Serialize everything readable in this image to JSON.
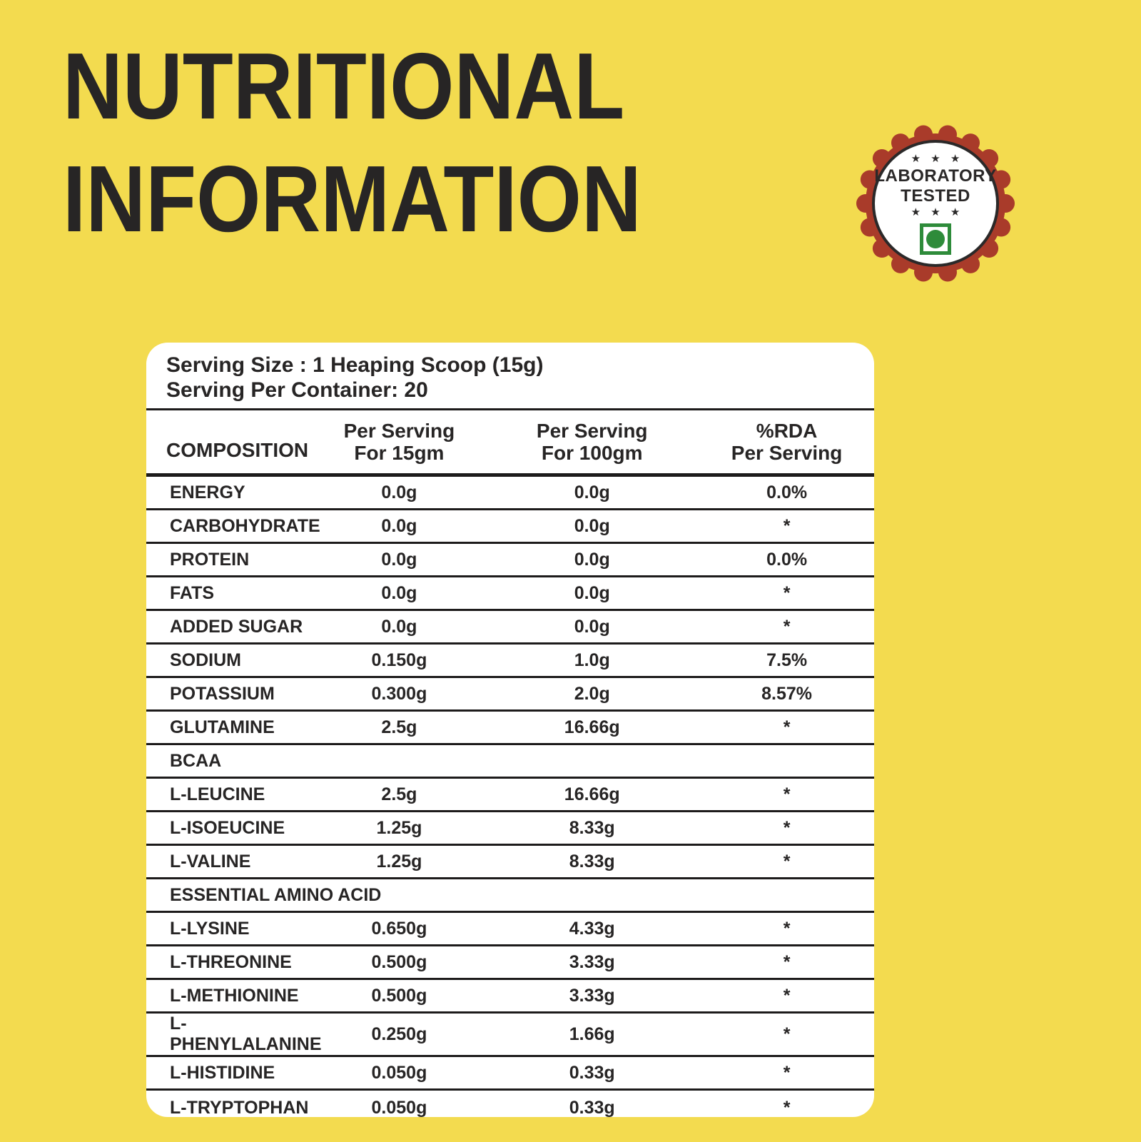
{
  "colors": {
    "background": "#F3DB4F",
    "ink": "#272525",
    "badge_red": "#A93B2A",
    "badge_ring": "#2B2929",
    "veg_green": "#2E8B3A",
    "panel": "#FFFFFF",
    "rule": "#1D1B1B"
  },
  "title": {
    "line1": "NUTRITIONAL",
    "line2": "INFORMATION"
  },
  "badge": {
    "stars_top": "★ ★ ★",
    "name_line1": "LABORATORY",
    "name_line2": "TESTED",
    "stars_bottom": "★ ★ ★"
  },
  "serving": {
    "size_label": "Serving Size : 1 Heaping Scoop (15g)",
    "per_container_label": "Serving Per Container: 20"
  },
  "table": {
    "columns": [
      {
        "label": "COMPOSITION"
      },
      {
        "line1": "Per Serving",
        "line2": "For 15gm"
      },
      {
        "line1": "Per Serving",
        "line2": "For 100gm"
      },
      {
        "line1": "%RDA",
        "line2": "Per Serving"
      }
    ],
    "rows": [
      {
        "name": "ENERGY",
        "per_15g": "0.0g",
        "per_100g": "0.0g",
        "rda": "0.0%"
      },
      {
        "name": "CARBOHYDRATE",
        "per_15g": "0.0g",
        "per_100g": "0.0g",
        "rda": "*"
      },
      {
        "name": "PROTEIN",
        "per_15g": "0.0g",
        "per_100g": "0.0g",
        "rda": "0.0%"
      },
      {
        "name": "FATS",
        "per_15g": "0.0g",
        "per_100g": "0.0g",
        "rda": "*"
      },
      {
        "name": "ADDED SUGAR",
        "per_15g": "0.0g",
        "per_100g": "0.0g",
        "rda": "*"
      },
      {
        "name": "SODIUM",
        "per_15g": "0.150g",
        "per_100g": "1.0g",
        "rda": "7.5%"
      },
      {
        "name": "POTASSIUM",
        "per_15g": "0.300g",
        "per_100g": "2.0g",
        "rda": "8.57%"
      },
      {
        "name": "GLUTAMINE",
        "per_15g": "2.5g",
        "per_100g": "16.66g",
        "rda": "*"
      },
      {
        "name": "BCAA",
        "section": true
      },
      {
        "name": "L-LEUCINE",
        "per_15g": "2.5g",
        "per_100g": "16.66g",
        "rda": "*"
      },
      {
        "name": "L-ISOEUCINE",
        "per_15g": "1.25g",
        "per_100g": "8.33g",
        "rda": "*"
      },
      {
        "name": "L-VALINE",
        "per_15g": "1.25g",
        "per_100g": "8.33g",
        "rda": "*"
      },
      {
        "name": "ESSENTIAL AMINO ACID",
        "section": true
      },
      {
        "name": "L-LYSINE",
        "per_15g": "0.650g",
        "per_100g": "4.33g",
        "rda": "*"
      },
      {
        "name": "L-THREONINE",
        "per_15g": "0.500g",
        "per_100g": "3.33g",
        "rda": "*"
      },
      {
        "name": "L-METHIONINE",
        "per_15g": "0.500g",
        "per_100g": "3.33g",
        "rda": "*"
      },
      {
        "name": "L-PHENYLALANINE",
        "per_15g": "0.250g",
        "per_100g": "1.66g",
        "rda": "*"
      },
      {
        "name": "L-HISTIDINE",
        "per_15g": "0.050g",
        "per_100g": "0.33g",
        "rda": "*"
      },
      {
        "name": "L-TRYPTOPHAN",
        "per_15g": "0.050g",
        "per_100g": "0.33g",
        "rda": "*"
      }
    ]
  }
}
